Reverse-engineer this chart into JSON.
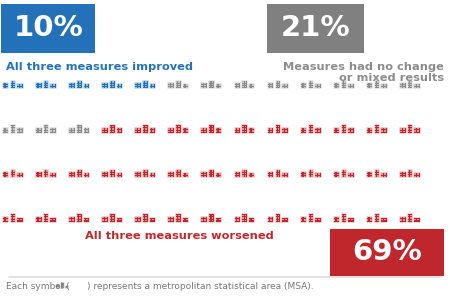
{
  "blue_count": 5,
  "gray_count": 11,
  "red_count": 36,
  "total": 52,
  "cols": 13,
  "rows": 4,
  "blue_pct": "10%",
  "gray_pct": "21%",
  "red_pct": "69%",
  "blue_label": "All three measures improved",
  "gray_label": "Measures had no change\nor mixed results",
  "red_label": "All three measures worsened",
  "footer": "Each symbol (      ) represents a metropolitan statistical area (MSA).",
  "blue_color": "#2372B9",
  "gray_color": "#8C8C8C",
  "red_color": "#C0272D",
  "blue_box_color": "#2372B9",
  "gray_box_color": "#808080",
  "red_box_color": "#C0272D",
  "bg_color": "#FFFFFF"
}
